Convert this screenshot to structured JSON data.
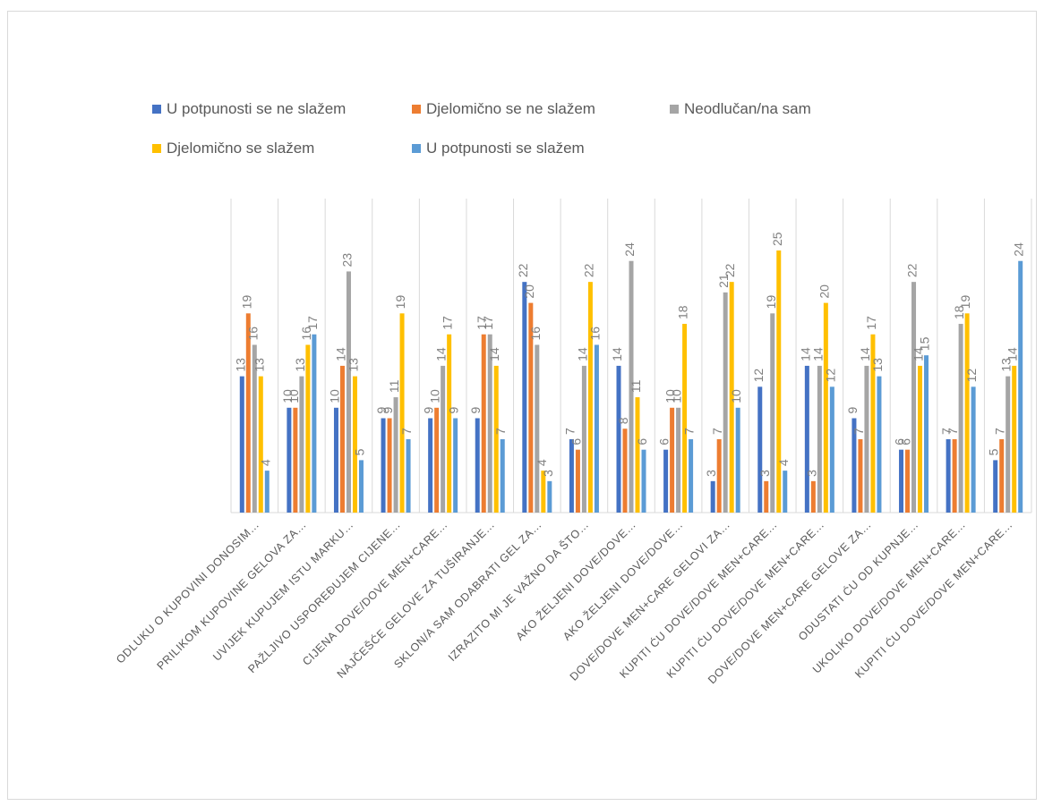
{
  "chart_data": {
    "type": "bar",
    "title": "",
    "xlabel": "",
    "ylabel": "",
    "ylim": [
      0,
      25
    ],
    "grid": "vertical category separators",
    "legend_position": "top",
    "categories": [
      "ODLUKU O KUPOVINI DONOSIM…",
      "PRILIKOM KUPOVINE GELOVA ZA…",
      "UVIJEK KUPUJEM ISTU MARKU…",
      "PAŽLJIVO USPOREĐUJEM CIJENE…",
      "CIJENA DOVE/DOVE MEN+CARE…",
      "NAJČEŠĆE GELOVE ZA TUŠIRANJE…",
      "SKLON/A SAM ODABRATI GEL ZA…",
      "IZRAZITO MI JE VAŽNO DA ŠTO…",
      "AKO ŽELJENI DOVE/DOVE…",
      "AKO ŽELJENI DOVE/DOVE…",
      "DOVE/DOVE MEN+CARE GELOVI ZA…",
      "KUPITI ĆU DOVE/DOVE MEN+CARE…",
      "KUPITI ĆU DOVE/DOVE MEN+CARE…",
      "DOVE/DOVE MEN+CARE GELOVE ZA…",
      "ODUSTATI ĆU OD KUPNJE…",
      "UKOLIKO DOVE/DOVE MEN+CARE…",
      "KUPITI ĆU DOVE/DOVE MEN+CARE…"
    ],
    "series": [
      {
        "name": "U potpunosti se ne slažem",
        "color": "#4472c4",
        "values": [
          13,
          10,
          10,
          9,
          9,
          9,
          22,
          7,
          14,
          6,
          3,
          12,
          14,
          9,
          6,
          7,
          5
        ]
      },
      {
        "name": "Djelomično se ne slažem",
        "color": "#ed7d31",
        "values": [
          19,
          10,
          14,
          9,
          10,
          17,
          20,
          6,
          8,
          10,
          7,
          3,
          3,
          7,
          6,
          7,
          7
        ]
      },
      {
        "name": "Neodlučan/na sam",
        "color": "#a5a5a5",
        "values": [
          16,
          13,
          23,
          11,
          14,
          17,
          16,
          14,
          24,
          10,
          21,
          19,
          14,
          14,
          22,
          18,
          13
        ]
      },
      {
        "name": "Djelomično se slažem",
        "color": "#ffc000",
        "values": [
          13,
          16,
          13,
          19,
          17,
          14,
          4,
          22,
          11,
          18,
          22,
          25,
          20,
          17,
          14,
          19,
          14
        ]
      },
      {
        "name": "U potpunosti se slažem",
        "color": "#5b9bd5",
        "values": [
          4,
          17,
          5,
          7,
          9,
          7,
          3,
          16,
          6,
          7,
          10,
          4,
          12,
          13,
          15,
          12,
          24
        ]
      }
    ],
    "legend_rows": [
      [
        0,
        1,
        2
      ],
      [
        3,
        4
      ]
    ]
  }
}
